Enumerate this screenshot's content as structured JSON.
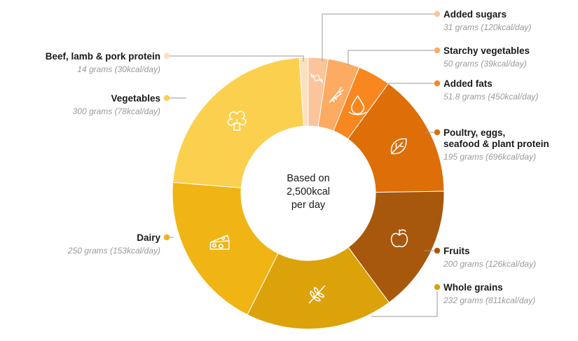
{
  "chart_data": {
    "type": "pie",
    "center_label": [
      "Based on",
      "2,500kcal",
      "per day"
    ],
    "series": [
      {
        "name": "Added sugars",
        "detail": "31 grams (120kcal/day)",
        "grams": 31,
        "color": "#fbc49a",
        "icon": "candy-icon"
      },
      {
        "name": "Starchy vegetables",
        "detail": "50 grams (39kcal/day)",
        "grams": 50,
        "color": "#fdaa63",
        "icon": "carrot-icon"
      },
      {
        "name": "Added fats",
        "detail": "51.8 grams (450kcal/day)",
        "grams": 51.8,
        "color": "#f8871f",
        "icon": "oil-drop-icon"
      },
      {
        "name": "Poultry, eggs, seafood & plant protein",
        "name_lines": [
          "Poultry, eggs,",
          "seafood & plant protein"
        ],
        "detail": "195 grams (696kcal/day)",
        "grams": 195,
        "color": "#de6e08",
        "icon": "leaf-icon"
      },
      {
        "name": "Fruits",
        "detail": "200 grams (126kcal/day)",
        "grams": 200,
        "color": "#a8580c",
        "icon": "apple-icon"
      },
      {
        "name": "Whole grains",
        "detail": "232 grams (811kcal/day)",
        "grams": 232,
        "color": "#dba20a",
        "icon": "wheat-icon"
      },
      {
        "name": "Dairy",
        "detail": "250 grams (153kcal/day)",
        "grams": 250,
        "color": "#f0b514",
        "icon": "cheese-icon"
      },
      {
        "name": "Vegetables",
        "detail": "300 grams (78kcal/day)",
        "grams": 300,
        "color": "#fcd04f",
        "icon": "broccoli-icon"
      },
      {
        "name": "Beef, lamb & pork protein",
        "detail": "14 grams (30kcal/day)",
        "grams": 14,
        "color": "#fde0bf",
        "icon": ""
      }
    ],
    "legend": "callouts-around-ring"
  }
}
